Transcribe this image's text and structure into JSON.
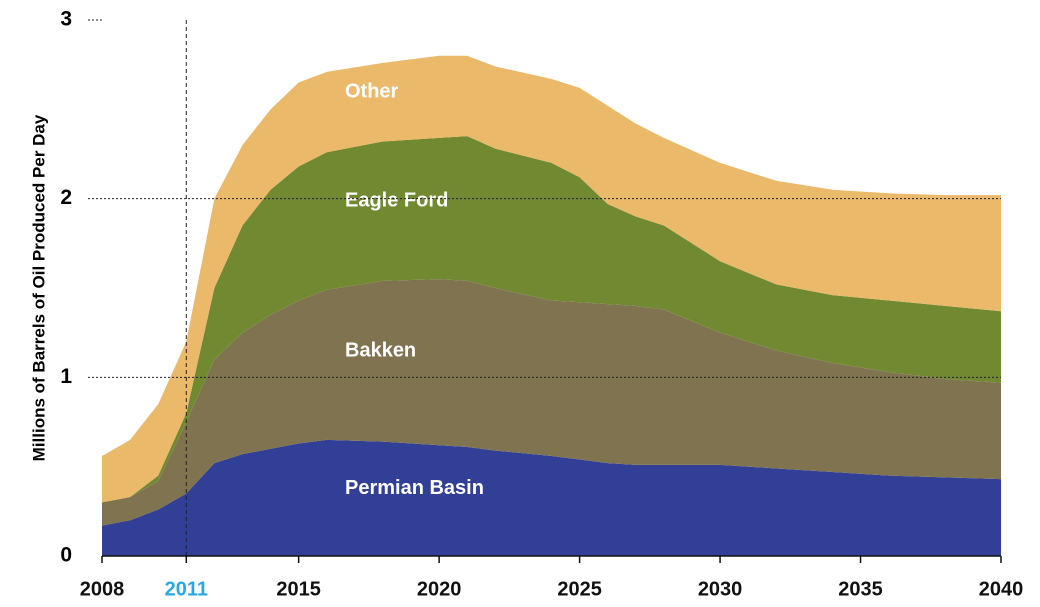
{
  "chart_data": {
    "type": "stacked_area",
    "ylabel": "Millions of Barrels of Oil Produced Per Day",
    "x": [
      2008,
      2009,
      2010,
      2011,
      2012,
      2013,
      2014,
      2015,
      2016,
      2018,
      2020,
      2021,
      2022,
      2024,
      2025,
      2026,
      2027,
      2028,
      2030,
      2032,
      2034,
      2036,
      2038,
      2040
    ],
    "series": [
      {
        "name": "Permian Basin",
        "color": "#323f96",
        "values": [
          0.17,
          0.2,
          0.26,
          0.35,
          0.52,
          0.57,
          0.6,
          0.63,
          0.65,
          0.64,
          0.62,
          0.61,
          0.59,
          0.56,
          0.54,
          0.52,
          0.51,
          0.51,
          0.51,
          0.49,
          0.47,
          0.45,
          0.44,
          0.43
        ]
      },
      {
        "name": "Bakken",
        "color": "#807350",
        "values": [
          0.13,
          0.13,
          0.16,
          0.4,
          0.58,
          0.68,
          0.75,
          0.8,
          0.84,
          0.9,
          0.93,
          0.93,
          0.91,
          0.87,
          0.88,
          0.89,
          0.89,
          0.87,
          0.74,
          0.66,
          0.61,
          0.58,
          0.55,
          0.54
        ]
      },
      {
        "name": "Eagle Ford",
        "color": "#718a32",
        "values": [
          0,
          0,
          0.03,
          0.05,
          0.4,
          0.6,
          0.7,
          0.75,
          0.77,
          0.78,
          0.79,
          0.81,
          0.78,
          0.77,
          0.7,
          0.56,
          0.5,
          0.47,
          0.4,
          0.37,
          0.38,
          0.4,
          0.41,
          0.4
        ]
      },
      {
        "name": "Other",
        "color": "#ebb96a",
        "values": [
          0.26,
          0.32,
          0.4,
          0.4,
          0.5,
          0.45,
          0.45,
          0.47,
          0.45,
          0.44,
          0.46,
          0.45,
          0.46,
          0.47,
          0.5,
          0.55,
          0.52,
          0.49,
          0.55,
          0.58,
          0.59,
          0.6,
          0.62,
          0.65
        ]
      }
    ],
    "xlim": [
      2008,
      2040
    ],
    "xticks": [
      2008,
      2011,
      2015,
      2020,
      2025,
      2030,
      2035,
      2040
    ],
    "ylim": [
      0,
      3
    ],
    "yticks": [
      0,
      1,
      2,
      3
    ],
    "grid": true,
    "reference_line": {
      "x": 2011,
      "color": "#29a8e0"
    }
  }
}
